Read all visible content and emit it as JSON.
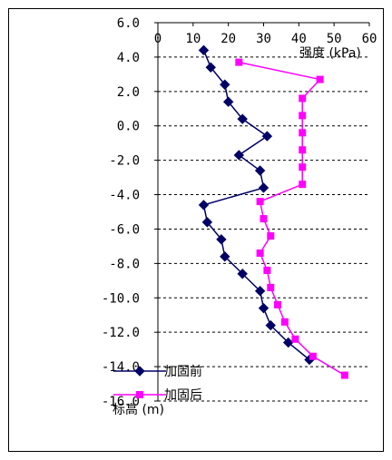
{
  "chart_data": {
    "type": "line",
    "xlabel": "强度 (kPa)",
    "ylabel": "标高 (m)",
    "xlim": [
      0,
      60
    ],
    "ylim": [
      -16,
      6
    ],
    "xticks": [
      0,
      10,
      20,
      30,
      40,
      50,
      60
    ],
    "yticks": [
      6,
      4,
      2,
      0,
      -2,
      -4,
      -6,
      -8,
      -10,
      -12,
      -14,
      -16
    ],
    "ytick_labels": [
      "6.0",
      "4.0",
      "2.0",
      "0.0",
      "-2.0",
      "-4.0",
      "-6.0",
      "-8.0",
      "-10.0",
      "-12.0",
      "-14.0",
      "-16.0"
    ],
    "grid": "horizontal dashed",
    "legend_position": "bottom-left",
    "series": [
      {
        "name": "加固前",
        "color": "#000066",
        "marker": "diamond",
        "points": [
          {
            "x": 13,
            "y": 4.4
          },
          {
            "x": 15,
            "y": 3.4
          },
          {
            "x": 19,
            "y": 2.4
          },
          {
            "x": 20,
            "y": 1.4
          },
          {
            "x": 24,
            "y": 0.4
          },
          {
            "x": 31,
            "y": -0.6
          },
          {
            "x": 23,
            "y": -1.7
          },
          {
            "x": 29,
            "y": -2.6
          },
          {
            "x": 30,
            "y": -3.6
          },
          {
            "x": 13,
            "y": -4.6
          },
          {
            "x": 14,
            "y": -5.6
          },
          {
            "x": 18,
            "y": -6.6
          },
          {
            "x": 19,
            "y": -7.6
          },
          {
            "x": 24,
            "y": -8.6
          },
          {
            "x": 29,
            "y": -9.6
          },
          {
            "x": 30,
            "y": -10.6
          },
          {
            "x": 32,
            "y": -11.6
          },
          {
            "x": 37,
            "y": -12.6
          },
          {
            "x": 43,
            "y": -13.6
          }
        ]
      },
      {
        "name": "加固后",
        "color": "#FF00FF",
        "marker": "square",
        "points": [
          {
            "x": 23,
            "y": 3.7
          },
          {
            "x": 46,
            "y": 2.7
          },
          {
            "x": 41,
            "y": 1.6
          },
          {
            "x": 41,
            "y": 0.6
          },
          {
            "x": 41,
            "y": -0.4
          },
          {
            "x": 41,
            "y": -1.4
          },
          {
            "x": 41,
            "y": -2.4
          },
          {
            "x": 41,
            "y": -3.4
          },
          {
            "x": 29,
            "y": -4.4
          },
          {
            "x": 30,
            "y": -5.4
          },
          {
            "x": 32,
            "y": -6.4
          },
          {
            "x": 29,
            "y": -7.4
          },
          {
            "x": 31,
            "y": -8.4
          },
          {
            "x": 32,
            "y": -9.4
          },
          {
            "x": 34,
            "y": -10.4
          },
          {
            "x": 36,
            "y": -11.4
          },
          {
            "x": 39,
            "y": -12.4
          },
          {
            "x": 44,
            "y": -13.4
          },
          {
            "x": 53,
            "y": -14.5
          }
        ]
      }
    ]
  }
}
